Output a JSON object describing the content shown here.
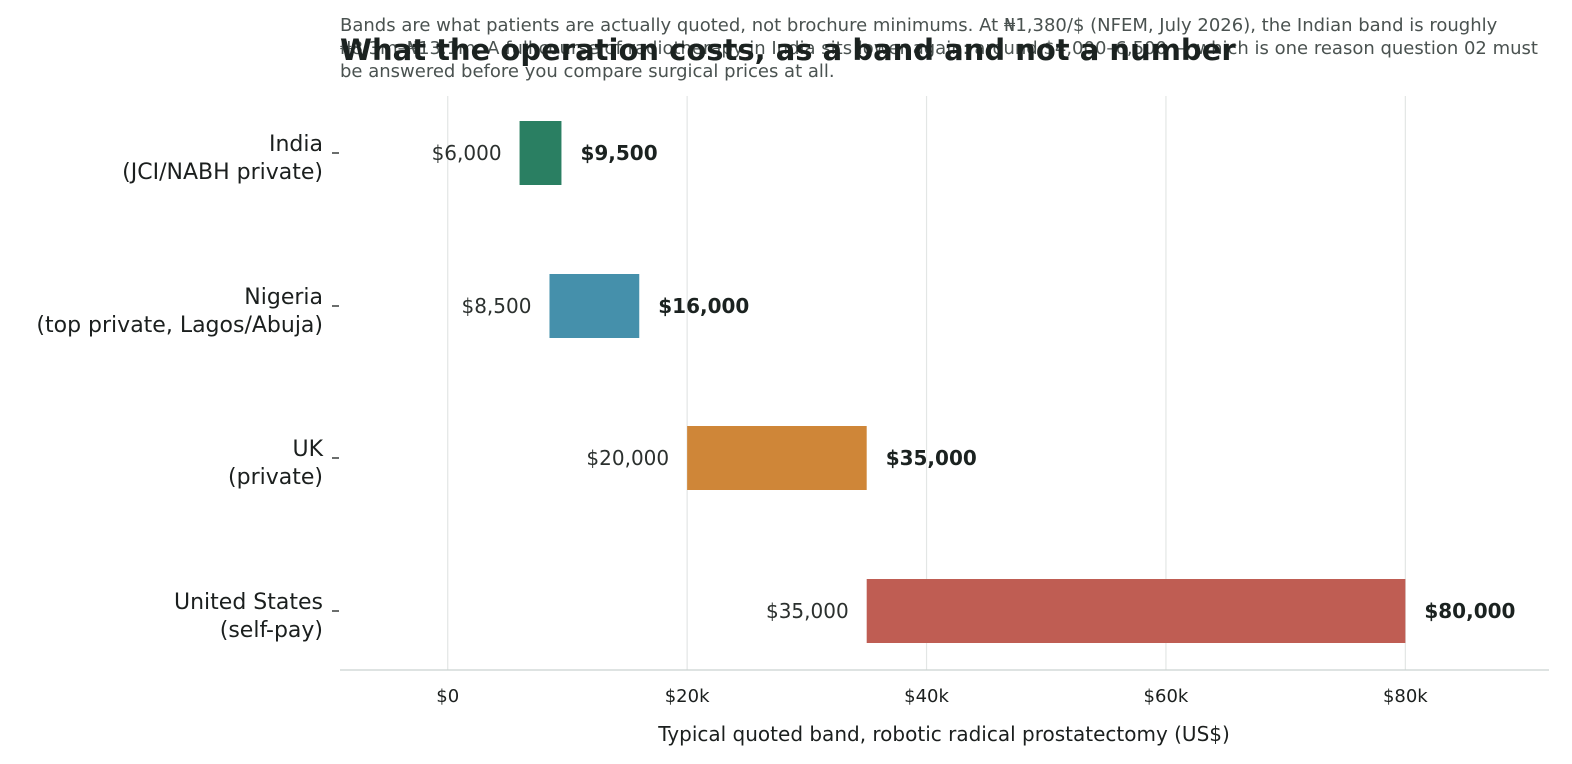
{
  "chart_data": {
    "type": "bar",
    "orientation": "horizontal-range",
    "title": "What the operation costs, as a band and not a number",
    "subtitle": "Bands are what patients are actually quoted, not brochure minimums. At ₦1,380/$ (NFEM, July 2026), the Indian band is roughly ₦8.3m–₦13.1m. A full course of radiotherapy in India sits lower again: around $4,000–6,500 — which is one reason question 02 must be answered before you compare surgical prices at all.",
    "xlabel": "Typical quoted band, robotic radical prostatectomy (US$)",
    "ylabel": "",
    "xlim": [
      -9000,
      92000
    ],
    "x_ticks": [
      {
        "value": 0,
        "label": "$0"
      },
      {
        "value": 20000,
        "label": "$20k"
      },
      {
        "value": 40000,
        "label": "$40k"
      },
      {
        "value": 60000,
        "label": "$60k"
      },
      {
        "value": 80000,
        "label": "$80k"
      }
    ],
    "grid": "vertical",
    "categories": [
      {
        "line1": "India",
        "line2": "(JCI/NABH private)"
      },
      {
        "line1": "Nigeria",
        "line2": "(top private, Lagos/Abuja)"
      },
      {
        "line1": "UK",
        "line2": "(private)"
      },
      {
        "line1": "United States",
        "line2": "(self-pay)"
      }
    ],
    "bands": [
      {
        "low": 6000,
        "high": 9500,
        "low_label": "$6,000",
        "high_label": "$9,500",
        "color": "#2a7f62"
      },
      {
        "low": 8500,
        "high": 16000,
        "low_label": "$8,500",
        "high_label": "$16,000",
        "color": "#4590ab"
      },
      {
        "low": 20000,
        "high": 35000,
        "low_label": "$20,000",
        "high_label": "$35,000",
        "color": "#cf8638"
      },
      {
        "low": 35000,
        "high": 80000,
        "low_label": "$35,000",
        "high_label": "$80,000",
        "color": "#bf5d53"
      }
    ]
  }
}
